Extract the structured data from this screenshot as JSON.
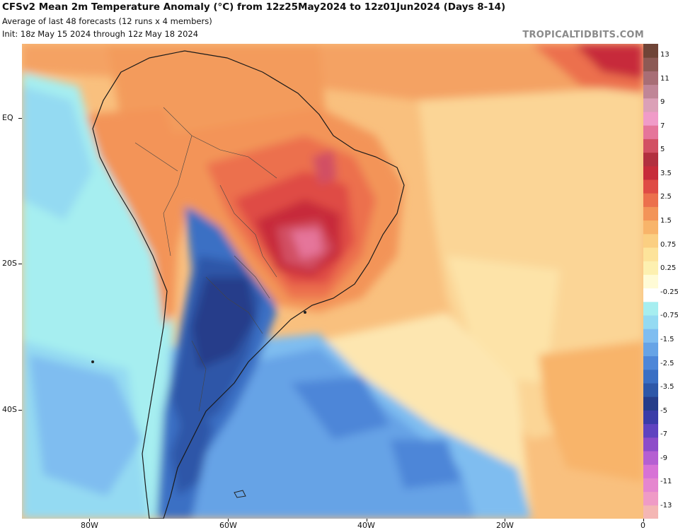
{
  "header": {
    "title": "CFSv2 Mean 2m Temperature Anomaly (°C) from 12z25May2024 to 12z01Jun2024 (Days 8-14)",
    "subtitle1": "Average of last 48 forecasts (12 runs x 4 members)",
    "subtitle2": "Init: 18z May 15 2024 through 12z May 18 2024",
    "brand": "TROPICALTIDBITS.COM"
  },
  "axes": {
    "lat_labels": [
      {
        "label": "EQ",
        "lat": 0
      },
      {
        "label": "20S",
        "lat": -20
      },
      {
        "label": "40S",
        "lat": -40
      }
    ],
    "lon_labels": [
      {
        "label": "80W",
        "lon": -80
      },
      {
        "label": "60W",
        "lon": -60
      },
      {
        "label": "40W",
        "lon": -40
      },
      {
        "label": "20W",
        "lon": -20
      },
      {
        "label": "0",
        "lon": 0
      }
    ]
  },
  "colorbar": {
    "colors": [
      "#f4b6b4",
      "#ef9bc6",
      "#e586cf",
      "#d772d6",
      "#b55fd2",
      "#8d4cc9",
      "#5f43c0",
      "#3a3ca8",
      "#253d8a",
      "#2d57a8",
      "#3a6fc4",
      "#4d86d8",
      "#66a3e6",
      "#7fbdf0",
      "#94daf2",
      "#a6eef0",
      "#ffffff",
      "#fffbd6",
      "#fdf0b0",
      "#fde39a",
      "#fbcf82",
      "#f8b46a",
      "#f39458",
      "#ec704d",
      "#df4b45",
      "#c72c3a",
      "#b2303f",
      "#d25063",
      "#e5759a",
      "#f09bc8",
      "#dba0b7",
      "#c08697",
      "#a86e76",
      "#8c5a55",
      "#6f4437"
    ],
    "labels": [
      "-13",
      "-11",
      "-9",
      "-7",
      "-5",
      "-3.5",
      "-2.5",
      "-1.5",
      "-0.75",
      "-0.25",
      "0.25",
      "0.75",
      "1.5",
      "2.5",
      "3.5",
      "5",
      "7",
      "9",
      "11",
      "13"
    ]
  }
}
